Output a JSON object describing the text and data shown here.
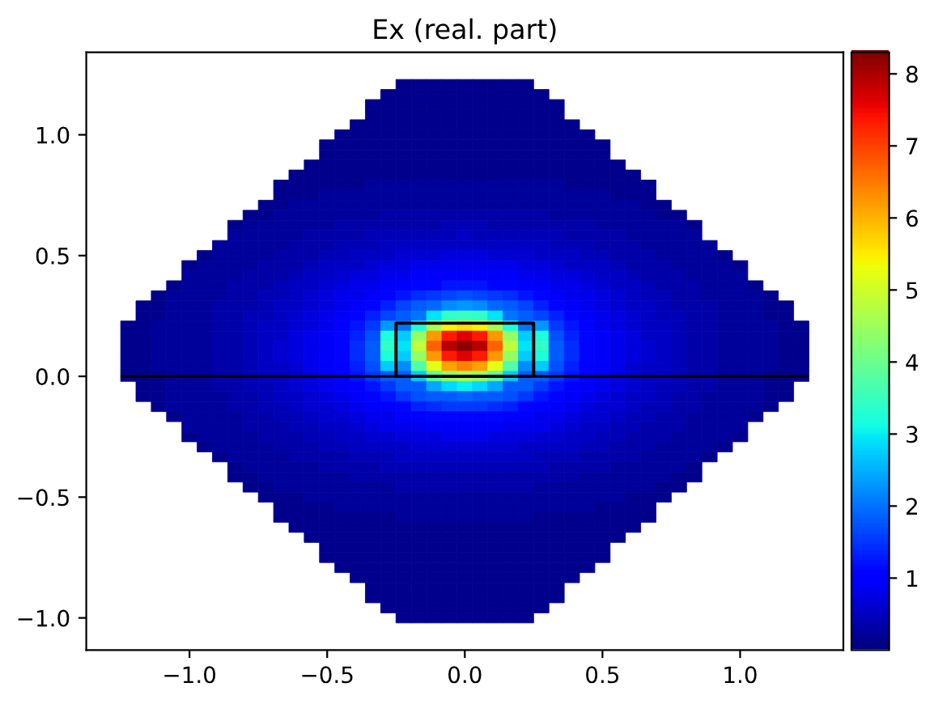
{
  "chart_data": {
    "type": "heatmap",
    "title": "Ex (real. part)",
    "clim": [
      0,
      8.3
    ],
    "cticks": [
      1,
      2,
      3,
      4,
      5,
      6,
      7,
      8
    ],
    "categories": [
      null,
      null,
      null,
      null,
      "−1.0",
      null,
      null,
      null,
      null,
      null,
      null,
      null,
      null,
      "−0.5",
      null,
      null,
      null,
      null,
      null,
      null,
      null,
      null,
      "0.0",
      null,
      null,
      null,
      null,
      null,
      null,
      null,
      null,
      "0.5",
      null,
      null,
      null,
      null,
      null,
      null,
      null,
      null,
      "1.0",
      null,
      null,
      null,
      null
    ],
    "y_categories": [
      null,
      null,
      null,
      null,
      null,
      "1.0",
      null,
      null,
      null,
      null,
      null,
      null,
      null,
      null,
      null,
      null,
      null,
      "0.5",
      null,
      null,
      null,
      null,
      null,
      null,
      null,
      null,
      null,
      null,
      null,
      "0.0",
      null,
      null,
      null,
      null,
      null,
      null,
      null,
      null,
      null,
      null,
      null,
      "−0.5",
      null,
      null,
      null,
      null,
      null,
      null,
      null,
      null,
      null,
      null,
      null,
      "−1.0"
    ],
    "ref_lines": [
      {
        "axis": "y",
        "value": "0.0",
        "color": "#000000"
      }
    ],
    "cells": [
      [
        null,
        null,
        null,
        null,
        null,
        null,
        null,
        null,
        null,
        null,
        null,
        null,
        null,
        null,
        null,
        null,
        null,
        null,
        0.1,
        0.1,
        0.1,
        0.1,
        0.1,
        0.1,
        0.1,
        0.1,
        0.1,
        null,
        null,
        null,
        null,
        null,
        null,
        null,
        null,
        null,
        null,
        null,
        null,
        null,
        null,
        null,
        null,
        null,
        null
      ],
      [
        null,
        null,
        null,
        null,
        null,
        null,
        null,
        null,
        null,
        null,
        null,
        null,
        null,
        null,
        null,
        null,
        null,
        0.1,
        0.1,
        0.1,
        0.1,
        0.1,
        0.1,
        0.1,
        0.1,
        0.1,
        0.1,
        0.1,
        null,
        null,
        null,
        null,
        null,
        null,
        null,
        null,
        null,
        null,
        null,
        null,
        null,
        null,
        null,
        null,
        null
      ],
      [
        null,
        null,
        null,
        null,
        null,
        null,
        null,
        null,
        null,
        null,
        null,
        null,
        null,
        null,
        null,
        null,
        0.1,
        0.1,
        0.1,
        0.1,
        0.1,
        0.1,
        0.1,
        0.1,
        0.1,
        0.1,
        0.1,
        0.1,
        0.1,
        null,
        null,
        null,
        null,
        null,
        null,
        null,
        null,
        null,
        null,
        null,
        null,
        null,
        null,
        null,
        null
      ],
      [
        null,
        null,
        null,
        null,
        null,
        null,
        null,
        null,
        null,
        null,
        null,
        null,
        null,
        null,
        null,
        null,
        0.1,
        0.1,
        0.1,
        0.1,
        0.1,
        0.1,
        0.1,
        0.1,
        0.1,
        0.1,
        0.1,
        0.1,
        0.1,
        null,
        null,
        null,
        null,
        null,
        null,
        null,
        null,
        null,
        null,
        null,
        null,
        null,
        null,
        null,
        null
      ],
      [
        null,
        null,
        null,
        null,
        null,
        null,
        null,
        null,
        null,
        null,
        null,
        null,
        null,
        null,
        null,
        0.1,
        0.1,
        0.1,
        0.1,
        0.1,
        0.1,
        0.1,
        0.1,
        0.1,
        0.1,
        0.1,
        0.1,
        0.1,
        0.1,
        0.1,
        null,
        null,
        null,
        null,
        null,
        null,
        null,
        null,
        null,
        null,
        null,
        null,
        null,
        null,
        null
      ],
      [
        null,
        null,
        null,
        null,
        null,
        null,
        null,
        null,
        null,
        null,
        null,
        null,
        null,
        null,
        0.1,
        0.1,
        0.1,
        0.1,
        0.1,
        0.1,
        0.1,
        0.1,
        0.1,
        0.1,
        0.1,
        0.1,
        0.1,
        0.1,
        0.1,
        0.1,
        0.1,
        null,
        null,
        null,
        null,
        null,
        null,
        null,
        null,
        null,
        null,
        null,
        null,
        null,
        null
      ],
      [
        null,
        null,
        null,
        null,
        null,
        null,
        null,
        null,
        null,
        null,
        null,
        null,
        null,
        0.1,
        0.1,
        0.1,
        0.1,
        0.1,
        0.1,
        0.1,
        0.1,
        0.1,
        0.1,
        0.1,
        0.1,
        0.1,
        0.1,
        0.1,
        0.1,
        0.1,
        0.1,
        0.1,
        null,
        null,
        null,
        null,
        null,
        null,
        null,
        null,
        null,
        null,
        null,
        null,
        null
      ],
      [
        null,
        null,
        null,
        null,
        null,
        null,
        null,
        null,
        null,
        null,
        null,
        null,
        null,
        0.1,
        0.1,
        0.1,
        0.1,
        0.1,
        0.1,
        0.1,
        0.1,
        0.1,
        0.1,
        0.1,
        0.1,
        0.1,
        0.1,
        0.1,
        0.1,
        0.1,
        0.1,
        0.1,
        null,
        null,
        null,
        null,
        null,
        null,
        null,
        null,
        null,
        null,
        null,
        null,
        null
      ],
      [
        null,
        null,
        null,
        null,
        null,
        null,
        null,
        null,
        null,
        null,
        null,
        null,
        0.1,
        0.1,
        0.1,
        0.1,
        0.1,
        0.1,
        0.1,
        0.1,
        0.1,
        0.1,
        0.1,
        0.1,
        0.1,
        0.1,
        0.1,
        0.1,
        0.1,
        0.1,
        0.1,
        0.1,
        0.1,
        null,
        null,
        null,
        null,
        null,
        null,
        null,
        null,
        null,
        null,
        null,
        null
      ],
      [
        null,
        null,
        null,
        null,
        null,
        null,
        null,
        null,
        null,
        null,
        null,
        0.1,
        0.1,
        0.1,
        0.1,
        0.1,
        0.1,
        0.1,
        0.1,
        0.1,
        0.1,
        0.1,
        0.1,
        0.1,
        0.1,
        0.1,
        0.1,
        0.1,
        0.1,
        0.1,
        0.1,
        0.1,
        0.1,
        0.1,
        null,
        null,
        null,
        null,
        null,
        null,
        null,
        null,
        null,
        null,
        null
      ],
      [
        null,
        null,
        null,
        null,
        null,
        null,
        null,
        null,
        null,
        null,
        0.1,
        0.1,
        0.1,
        0.1,
        0.1,
        0.1,
        0.2,
        0.2,
        0.2,
        0.2,
        0.2,
        0.2,
        0.2,
        0.2,
        0.2,
        0.2,
        0.2,
        0.2,
        0.2,
        0.1,
        0.1,
        0.1,
        0.1,
        0.1,
        0.1,
        null,
        null,
        null,
        null,
        null,
        null,
        null,
        null,
        null,
        null
      ],
      [
        null,
        null,
        null,
        null,
        null,
        null,
        null,
        null,
        null,
        null,
        0.1,
        0.1,
        0.1,
        0.2,
        0.2,
        0.2,
        0.2,
        0.2,
        0.2,
        0.2,
        0.2,
        0.2,
        0.2,
        0.2,
        0.2,
        0.2,
        0.2,
        0.2,
        0.2,
        0.2,
        0.2,
        0.2,
        0.1,
        0.1,
        0.1,
        null,
        null,
        null,
        null,
        null,
        null,
        null,
        null,
        null,
        null
      ],
      [
        null,
        null,
        null,
        null,
        null,
        null,
        null,
        null,
        null,
        0.1,
        0.1,
        0.2,
        0.2,
        0.2,
        0.2,
        0.2,
        0.2,
        0.2,
        0.2,
        0.2,
        0.2,
        0.2,
        0.2,
        0.2,
        0.2,
        0.2,
        0.2,
        0.2,
        0.2,
        0.2,
        0.2,
        0.2,
        0.2,
        0.2,
        0.1,
        0.1,
        null,
        null,
        null,
        null,
        null,
        null,
        null,
        null,
        null
      ],
      [
        null,
        null,
        null,
        null,
        null,
        null,
        null,
        null,
        0.1,
        0.1,
        0.2,
        0.2,
        0.2,
        0.2,
        0.2,
        0.2,
        0.2,
        0.3,
        0.3,
        0.3,
        0.3,
        0.3,
        0.3,
        0.3,
        0.3,
        0.3,
        0.3,
        0.3,
        0.2,
        0.2,
        0.2,
        0.2,
        0.2,
        0.2,
        0.2,
        0.1,
        0.1,
        null,
        null,
        null,
        null,
        null,
        null,
        null,
        null
      ],
      [
        null,
        null,
        null,
        null,
        null,
        null,
        null,
        0.1,
        0.2,
        0.2,
        0.2,
        0.2,
        0.2,
        0.2,
        0.3,
        0.3,
        0.3,
        0.3,
        0.3,
        0.3,
        0.3,
        0.4,
        0.4,
        0.4,
        0.3,
        0.3,
        0.3,
        0.3,
        0.3,
        0.3,
        0.3,
        0.2,
        0.2,
        0.2,
        0.2,
        0.2,
        0.2,
        0.1,
        null,
        null,
        null,
        null,
        null,
        null,
        null
      ],
      [
        null,
        null,
        null,
        null,
        null,
        null,
        null,
        0.2,
        0.2,
        0.2,
        0.2,
        0.2,
        0.3,
        0.3,
        0.3,
        0.3,
        0.4,
        0.4,
        0.4,
        0.4,
        0.4,
        0.4,
        0.5,
        0.4,
        0.4,
        0.4,
        0.4,
        0.4,
        0.4,
        0.3,
        0.3,
        0.3,
        0.3,
        0.2,
        0.2,
        0.2,
        0.2,
        0.2,
        null,
        null,
        null,
        null,
        null,
        null,
        null
      ],
      [
        null,
        null,
        null,
        null,
        null,
        null,
        0.2,
        0.2,
        0.2,
        0.2,
        0.2,
        0.3,
        0.3,
        0.3,
        0.4,
        0.4,
        0.4,
        0.5,
        0.5,
        0.5,
        0.5,
        0.5,
        0.5,
        0.5,
        0.5,
        0.5,
        0.5,
        0.5,
        0.4,
        0.4,
        0.4,
        0.3,
        0.3,
        0.3,
        0.2,
        0.2,
        0.2,
        0.2,
        0.2,
        null,
        null,
        null,
        null,
        null,
        null
      ],
      [
        null,
        null,
        null,
        null,
        null,
        0.1,
        0.2,
        0.2,
        0.2,
        0.2,
        0.3,
        0.3,
        0.3,
        0.4,
        0.4,
        0.5,
        0.5,
        0.5,
        0.6,
        0.6,
        0.6,
        0.7,
        0.7,
        0.7,
        0.6,
        0.6,
        0.6,
        0.5,
        0.5,
        0.5,
        0.4,
        0.4,
        0.3,
        0.3,
        0.3,
        0.2,
        0.2,
        0.2,
        0.2,
        0.1,
        null,
        null,
        null,
        null,
        null
      ],
      [
        null,
        null,
        null,
        null,
        0.1,
        0.2,
        0.2,
        0.2,
        0.2,
        0.3,
        0.3,
        0.3,
        0.4,
        0.5,
        0.5,
        0.5,
        0.6,
        0.7,
        0.7,
        0.8,
        0.8,
        0.8,
        0.8,
        0.8,
        0.8,
        0.8,
        0.7,
        0.7,
        0.6,
        0.5,
        0.5,
        0.5,
        0.4,
        0.3,
        0.3,
        0.3,
        0.2,
        0.2,
        0.2,
        0.2,
        0.1,
        null,
        null,
        null,
        null
      ],
      [
        null,
        null,
        null,
        null,
        0.2,
        0.2,
        0.2,
        0.2,
        0.3,
        0.3,
        0.3,
        0.4,
        0.5,
        0.5,
        0.6,
        0.7,
        0.7,
        0.8,
        0.8,
        0.9,
        0.9,
        0.9,
        0.9,
        0.9,
        0.9,
        0.9,
        0.8,
        0.8,
        0.7,
        0.7,
        0.6,
        0.5,
        0.5,
        0.4,
        0.3,
        0.3,
        0.3,
        0.2,
        0.2,
        0.2,
        0.2,
        null,
        null,
        null,
        null
      ],
      [
        null,
        null,
        null,
        0.1,
        0.2,
        0.2,
        0.2,
        0.3,
        0.3,
        0.3,
        0.4,
        0.5,
        0.5,
        0.6,
        0.7,
        0.8,
        0.8,
        0.9,
        1.0,
        1.1,
        1.1,
        1.2,
        1.2,
        1.2,
        1.1,
        1.1,
        1.0,
        0.9,
        0.8,
        0.8,
        0.7,
        0.6,
        0.5,
        0.5,
        0.4,
        0.3,
        0.3,
        0.3,
        0.2,
        0.2,
        0.2,
        0.1,
        null,
        null,
        null
      ],
      [
        null,
        null,
        0.1,
        0.2,
        0.2,
        0.2,
        0.2,
        0.3,
        0.3,
        0.4,
        0.4,
        0.5,
        0.6,
        0.7,
        0.8,
        0.8,
        0.9,
        1.1,
        1.2,
        1.4,
        1.5,
        1.6,
        1.7,
        1.6,
        1.5,
        1.4,
        1.2,
        1.1,
        0.9,
        0.8,
        0.8,
        0.7,
        0.6,
        0.5,
        0.4,
        0.4,
        0.3,
        0.3,
        0.2,
        0.2,
        0.2,
        0.2,
        0.1,
        null,
        null
      ],
      [
        null,
        0.1,
        0.1,
        0.2,
        0.2,
        0.2,
        0.3,
        0.3,
        0.3,
        0.4,
        0.5,
        0.5,
        0.6,
        0.7,
        0.8,
        0.9,
        1.1,
        1.3,
        1.6,
        1.8,
        1.9,
        2.2,
        2.3,
        2.2,
        1.9,
        1.8,
        1.6,
        1.3,
        1.1,
        0.9,
        0.8,
        0.7,
        0.6,
        0.5,
        0.5,
        0.4,
        0.3,
        0.3,
        0.3,
        0.2,
        0.2,
        0.2,
        0.1,
        0.1,
        null
      ],
      [
        null,
        0.1,
        0.1,
        0.2,
        0.2,
        0.2,
        0.3,
        0.3,
        0.4,
        0.4,
        0.5,
        0.6,
        0.7,
        0.8,
        0.9,
        1.1,
        1.3,
        1.6,
        1.8,
        2.0,
        2.9,
        3.4,
        3.5,
        3.4,
        2.9,
        2.0,
        1.8,
        1.6,
        1.3,
        1.1,
        0.9,
        0.8,
        0.7,
        0.6,
        0.5,
        0.4,
        0.4,
        0.3,
        0.3,
        0.2,
        0.2,
        0.2,
        0.1,
        0.1,
        null
      ],
      [
        0.1,
        0.1,
        0.2,
        0.2,
        0.2,
        0.2,
        0.3,
        0.3,
        0.4,
        0.5,
        0.5,
        0.6,
        0.7,
        0.8,
        1.0,
        1.2,
        1.5,
        2.3,
        2.0,
        3.2,
        4.6,
        5.4,
        5.6,
        5.4,
        4.6,
        3.2,
        2.0,
        2.3,
        1.5,
        1.2,
        1.0,
        0.8,
        0.7,
        0.6,
        0.5,
        0.5,
        0.4,
        0.3,
        0.3,
        0.2,
        0.2,
        0.2,
        0.2,
        0.1,
        0.1
      ],
      [
        0.1,
        0.1,
        0.2,
        0.2,
        0.2,
        0.2,
        0.3,
        0.3,
        0.4,
        0.5,
        0.5,
        0.7,
        0.8,
        0.9,
        1.1,
        1.3,
        1.7,
        3.2,
        2.7,
        4.4,
        6.2,
        7.3,
        7.6,
        7.3,
        6.2,
        4.4,
        2.7,
        3.2,
        1.7,
        1.3,
        1.1,
        0.9,
        0.8,
        0.7,
        0.5,
        0.5,
        0.4,
        0.3,
        0.3,
        0.2,
        0.2,
        0.2,
        0.2,
        0.1,
        0.1
      ],
      [
        0.1,
        0.1,
        0.2,
        0.2,
        0.2,
        0.2,
        0.3,
        0.3,
        0.4,
        0.5,
        0.6,
        0.7,
        0.8,
        0.9,
        1.1,
        1.4,
        1.8,
        3.4,
        2.9,
        4.8,
        6.7,
        7.9,
        8.2,
        7.9,
        6.7,
        4.8,
        2.9,
        3.4,
        1.8,
        1.4,
        1.1,
        0.9,
        0.8,
        0.7,
        0.6,
        0.5,
        0.4,
        0.3,
        0.3,
        0.2,
        0.2,
        0.2,
        0.2,
        0.1,
        0.1
      ],
      [
        0.1,
        0.1,
        0.2,
        0.2,
        0.2,
        0.2,
        0.3,
        0.3,
        0.4,
        0.5,
        0.6,
        0.7,
        0.8,
        0.9,
        1.1,
        1.4,
        1.8,
        3.2,
        2.7,
        4.4,
        6.2,
        7.3,
        7.6,
        7.3,
        6.2,
        4.4,
        2.7,
        3.2,
        1.8,
        1.4,
        1.1,
        0.9,
        0.8,
        0.7,
        0.6,
        0.5,
        0.4,
        0.3,
        0.3,
        0.2,
        0.2,
        0.2,
        0.2,
        0.1,
        0.1
      ],
      [
        0.1,
        0.1,
        0.2,
        0.2,
        0.2,
        0.2,
        0.3,
        0.3,
        0.4,
        0.5,
        0.5,
        0.6,
        0.8,
        0.9,
        1.0,
        1.3,
        1.7,
        2.7,
        2.2,
        3.7,
        5.2,
        6.1,
        6.4,
        6.1,
        5.2,
        3.7,
        2.2,
        2.7,
        1.7,
        1.3,
        1.0,
        0.9,
        0.8,
        0.6,
        0.5,
        0.5,
        0.4,
        0.3,
        0.3,
        0.2,
        0.2,
        0.2,
        0.2,
        0.1,
        0.1
      ],
      [
        0.1,
        0.1,
        0.1,
        0.2,
        0.2,
        0.2,
        0.3,
        0.3,
        0.4,
        0.5,
        0.5,
        0.6,
        0.7,
        0.8,
        1.0,
        1.2,
        1.5,
        1.8,
        1.8,
        2.7,
        3.8,
        4.4,
        4.6,
        4.4,
        3.8,
        2.7,
        1.8,
        1.8,
        1.5,
        1.2,
        1.0,
        0.8,
        0.7,
        0.6,
        0.5,
        0.5,
        0.4,
        0.3,
        0.3,
        0.2,
        0.2,
        0.2,
        0.1,
        0.1,
        0.1
      ],
      [
        null,
        0.1,
        0.1,
        0.2,
        0.2,
        0.2,
        0.3,
        0.3,
        0.4,
        0.4,
        0.5,
        0.6,
        0.7,
        0.8,
        0.9,
        1.0,
        1.2,
        1.5,
        1.8,
        1.8,
        2.4,
        2.8,
        3.0,
        2.8,
        2.4,
        1.8,
        1.8,
        1.5,
        1.2,
        1.0,
        0.9,
        0.8,
        0.7,
        0.6,
        0.5,
        0.4,
        0.4,
        0.3,
        0.3,
        0.2,
        0.2,
        0.2,
        0.1,
        0.1,
        null
      ],
      [
        null,
        0.1,
        0.1,
        0.2,
        0.2,
        0.2,
        0.2,
        0.3,
        0.3,
        0.4,
        0.5,
        0.5,
        0.6,
        0.7,
        0.8,
        0.9,
        1.1,
        1.2,
        1.5,
        1.7,
        1.8,
        1.8,
        1.9,
        1.8,
        1.8,
        1.7,
        1.5,
        1.2,
        1.1,
        0.9,
        0.8,
        0.7,
        0.6,
        0.5,
        0.5,
        0.4,
        0.3,
        0.3,
        0.2,
        0.2,
        0.2,
        0.2,
        0.1,
        0.1,
        null
      ],
      [
        null,
        null,
        0.1,
        0.2,
        0.2,
        0.2,
        0.2,
        0.3,
        0.3,
        0.4,
        0.4,
        0.5,
        0.6,
        0.6,
        0.7,
        0.8,
        0.9,
        1.0,
        1.1,
        1.3,
        1.4,
        1.5,
        1.5,
        1.5,
        1.4,
        1.3,
        1.1,
        1.0,
        0.9,
        0.8,
        0.7,
        0.6,
        0.6,
        0.5,
        0.4,
        0.4,
        0.3,
        0.3,
        0.2,
        0.2,
        0.2,
        0.2,
        0.1,
        null,
        null
      ],
      [
        null,
        null,
        null,
        0.1,
        0.2,
        0.2,
        0.2,
        0.2,
        0.3,
        0.3,
        0.4,
        0.4,
        0.5,
        0.6,
        0.6,
        0.7,
        0.8,
        0.8,
        0.9,
        1.0,
        1.1,
        1.1,
        1.1,
        1.1,
        1.1,
        1.0,
        0.9,
        0.8,
        0.8,
        0.7,
        0.6,
        0.6,
        0.5,
        0.4,
        0.4,
        0.3,
        0.3,
        0.2,
        0.2,
        0.2,
        0.2,
        0.1,
        null,
        null,
        null
      ],
      [
        null,
        null,
        null,
        null,
        0.2,
        0.2,
        0.2,
        0.2,
        0.3,
        0.3,
        0.3,
        0.4,
        0.4,
        0.5,
        0.5,
        0.6,
        0.7,
        0.8,
        0.8,
        0.8,
        0.9,
        0.9,
        0.9,
        0.9,
        0.9,
        0.8,
        0.8,
        0.8,
        0.7,
        0.6,
        0.5,
        0.5,
        0.4,
        0.4,
        0.3,
        0.3,
        0.3,
        0.2,
        0.2,
        0.2,
        0.2,
        null,
        null,
        null,
        null
      ],
      [
        null,
        null,
        null,
        null,
        0.1,
        0.2,
        0.2,
        0.2,
        0.2,
        0.3,
        0.3,
        0.3,
        0.4,
        0.4,
        0.5,
        0.5,
        0.6,
        0.6,
        0.7,
        0.7,
        0.7,
        0.8,
        0.8,
        0.8,
        0.7,
        0.7,
        0.7,
        0.6,
        0.6,
        0.5,
        0.5,
        0.4,
        0.4,
        0.3,
        0.3,
        0.3,
        0.2,
        0.2,
        0.2,
        0.2,
        0.1,
        null,
        null,
        null,
        null
      ],
      [
        null,
        null,
        null,
        null,
        null,
        0.1,
        0.2,
        0.2,
        0.2,
        0.2,
        0.3,
        0.3,
        0.3,
        0.4,
        0.4,
        0.5,
        0.5,
        0.5,
        0.5,
        0.6,
        0.6,
        0.6,
        0.6,
        0.6,
        0.6,
        0.6,
        0.5,
        0.5,
        0.5,
        0.5,
        0.4,
        0.4,
        0.3,
        0.3,
        0.3,
        0.2,
        0.2,
        0.2,
        0.2,
        0.1,
        null,
        null,
        null,
        null,
        null
      ],
      [
        null,
        null,
        null,
        null,
        null,
        null,
        0.1,
        0.2,
        0.2,
        0.2,
        0.2,
        0.3,
        0.3,
        0.3,
        0.3,
        0.4,
        0.4,
        0.4,
        0.5,
        0.5,
        0.5,
        0.5,
        0.5,
        0.5,
        0.5,
        0.5,
        0.5,
        0.4,
        0.4,
        0.4,
        0.3,
        0.3,
        0.3,
        0.3,
        0.2,
        0.2,
        0.2,
        0.2,
        0.1,
        null,
        null,
        null,
        null,
        null,
        null
      ],
      [
        null,
        null,
        null,
        null,
        null,
        null,
        null,
        0.1,
        0.2,
        0.2,
        0.2,
        0.2,
        0.2,
        0.3,
        0.3,
        0.3,
        0.3,
        0.4,
        0.4,
        0.4,
        0.4,
        0.4,
        0.4,
        0.4,
        0.4,
        0.4,
        0.4,
        0.4,
        0.3,
        0.3,
        0.3,
        0.3,
        0.2,
        0.2,
        0.2,
        0.2,
        0.2,
        0.1,
        null,
        null,
        null,
        null,
        null,
        null,
        null
      ],
      [
        null,
        null,
        null,
        null,
        null,
        null,
        null,
        0.1,
        0.1,
        0.2,
        0.2,
        0.2,
        0.2,
        0.2,
        0.2,
        0.3,
        0.3,
        0.3,
        0.3,
        0.3,
        0.3,
        0.3,
        0.3,
        0.3,
        0.3,
        0.3,
        0.3,
        0.3,
        0.3,
        0.3,
        0.2,
        0.2,
        0.2,
        0.2,
        0.2,
        0.2,
        0.1,
        0.1,
        null,
        null,
        null,
        null,
        null,
        null,
        null
      ],
      [
        null,
        null,
        null,
        null,
        null,
        null,
        null,
        null,
        0.1,
        0.1,
        0.2,
        0.2,
        0.2,
        0.2,
        0.2,
        0.2,
        0.2,
        0.2,
        0.3,
        0.3,
        0.3,
        0.3,
        0.3,
        0.3,
        0.3,
        0.3,
        0.3,
        0.2,
        0.2,
        0.2,
        0.2,
        0.2,
        0.2,
        0.2,
        0.2,
        0.1,
        0.1,
        null,
        null,
        null,
        null,
        null,
        null,
        null,
        null
      ],
      [
        null,
        null,
        null,
        null,
        null,
        null,
        null,
        null,
        null,
        0.1,
        0.1,
        0.1,
        0.2,
        0.2,
        0.2,
        0.2,
        0.2,
        0.2,
        0.2,
        0.2,
        0.2,
        0.2,
        0.2,
        0.2,
        0.2,
        0.2,
        0.2,
        0.2,
        0.2,
        0.2,
        0.2,
        0.2,
        0.2,
        0.1,
        0.1,
        0.1,
        null,
        null,
        null,
        null,
        null,
        null,
        null,
        null,
        null
      ],
      [
        null,
        null,
        null,
        null,
        null,
        null,
        null,
        null,
        null,
        null,
        0.1,
        0.1,
        0.1,
        0.1,
        0.2,
        0.2,
        0.2,
        0.2,
        0.2,
        0.2,
        0.2,
        0.2,
        0.2,
        0.2,
        0.2,
        0.2,
        0.2,
        0.2,
        0.2,
        0.2,
        0.2,
        0.1,
        0.1,
        0.1,
        0.1,
        null,
        null,
        null,
        null,
        null,
        null,
        null,
        null,
        null,
        null
      ],
      [
        null,
        null,
        null,
        null,
        null,
        null,
        null,
        null,
        null,
        null,
        0.1,
        0.1,
        0.1,
        0.1,
        0.1,
        0.1,
        0.1,
        0.1,
        0.2,
        0.2,
        0.2,
        0.2,
        0.2,
        0.2,
        0.2,
        0.2,
        0.2,
        0.1,
        0.1,
        0.1,
        0.1,
        0.1,
        0.1,
        0.1,
        0.1,
        null,
        null,
        null,
        null,
        null,
        null,
        null,
        null,
        null,
        null
      ],
      [
        null,
        null,
        null,
        null,
        null,
        null,
        null,
        null,
        null,
        null,
        null,
        0.1,
        0.1,
        0.1,
        0.1,
        0.1,
        0.1,
        0.1,
        0.1,
        0.1,
        0.1,
        0.1,
        0.1,
        0.1,
        0.1,
        0.1,
        0.1,
        0.1,
        0.1,
        0.1,
        0.1,
        0.1,
        0.1,
        0.1,
        null,
        null,
        null,
        null,
        null,
        null,
        null,
        null,
        null,
        null,
        null
      ],
      [
        null,
        null,
        null,
        null,
        null,
        null,
        null,
        null,
        null,
        null,
        null,
        null,
        0.1,
        0.1,
        0.1,
        0.1,
        0.1,
        0.1,
        0.1,
        0.1,
        0.1,
        0.1,
        0.1,
        0.1,
        0.1,
        0.1,
        0.1,
        0.1,
        0.1,
        0.1,
        0.1,
        0.1,
        0.1,
        null,
        null,
        null,
        null,
        null,
        null,
        null,
        null,
        null,
        null,
        null,
        null
      ],
      [
        null,
        null,
        null,
        null,
        null,
        null,
        null,
        null,
        null,
        null,
        null,
        null,
        null,
        0.1,
        0.1,
        0.1,
        0.1,
        0.1,
        0.1,
        0.1,
        0.1,
        0.1,
        0.1,
        0.1,
        0.1,
        0.1,
        0.1,
        0.1,
        0.1,
        0.1,
        0.1,
        0.1,
        null,
        null,
        null,
        null,
        null,
        null,
        null,
        null,
        null,
        null,
        null,
        null,
        null
      ],
      [
        null,
        null,
        null,
        null,
        null,
        null,
        null,
        null,
        null,
        null,
        null,
        null,
        null,
        0.1,
        0.1,
        0.1,
        0.1,
        0.1,
        0.1,
        0.1,
        0.1,
        0.1,
        0.1,
        0.1,
        0.1,
        0.1,
        0.1,
        0.1,
        0.1,
        0.1,
        0.1,
        0.1,
        null,
        null,
        null,
        null,
        null,
        null,
        null,
        null,
        null,
        null,
        null,
        null,
        null
      ],
      [
        null,
        null,
        null,
        null,
        null,
        null,
        null,
        null,
        null,
        null,
        null,
        null,
        null,
        null,
        0.1,
        0.1,
        0.1,
        0.1,
        0.1,
        0.1,
        0.1,
        0.1,
        0.1,
        0.1,
        0.1,
        0.1,
        0.1,
        0.1,
        0.1,
        0.1,
        0.1,
        null,
        null,
        null,
        null,
        null,
        null,
        null,
        null,
        null,
        null,
        null,
        null,
        null,
        null
      ],
      [
        null,
        null,
        null,
        null,
        null,
        null,
        null,
        null,
        null,
        null,
        null,
        null,
        null,
        null,
        null,
        0.1,
        0.1,
        0.1,
        0.1,
        0.1,
        0.1,
        0.1,
        0.1,
        0.1,
        0.1,
        0.1,
        0.1,
        0.1,
        0.1,
        0.1,
        null,
        null,
        null,
        null,
        null,
        null,
        null,
        null,
        null,
        null,
        null,
        null,
        null,
        null,
        null
      ],
      [
        null,
        null,
        null,
        null,
        null,
        null,
        null,
        null,
        null,
        null,
        null,
        null,
        null,
        null,
        null,
        null,
        0.1,
        0.1,
        0.1,
        0.1,
        0.1,
        0.1,
        0.1,
        0.1,
        0.1,
        0.1,
        0.1,
        0.1,
        0.1,
        null,
        null,
        null,
        null,
        null,
        null,
        null,
        null,
        null,
        null,
        null,
        null,
        null,
        null,
        null,
        null
      ],
      [
        null,
        null,
        null,
        null,
        null,
        null,
        null,
        null,
        null,
        null,
        null,
        null,
        null,
        null,
        null,
        null,
        0.1,
        0.1,
        0.1,
        0.1,
        0.1,
        0.1,
        0.1,
        0.1,
        0.1,
        0.1,
        0.1,
        0.1,
        0.1,
        null,
        null,
        null,
        null,
        null,
        null,
        null,
        null,
        null,
        null,
        null,
        null,
        null,
        null,
        null,
        null
      ],
      [
        null,
        null,
        null,
        null,
        null,
        null,
        null,
        null,
        null,
        null,
        null,
        null,
        null,
        null,
        null,
        null,
        null,
        0.1,
        0.1,
        0.1,
        0.1,
        0.1,
        0.1,
        0.1,
        0.1,
        0.1,
        0.1,
        0.1,
        null,
        null,
        null,
        null,
        null,
        null,
        null,
        null,
        null,
        null,
        null,
        null,
        null,
        null,
        null,
        null,
        null
      ],
      [
        null,
        null,
        null,
        null,
        null,
        null,
        null,
        null,
        null,
        null,
        null,
        null,
        null,
        null,
        null,
        null,
        null,
        null,
        0.1,
        0.1,
        0.1,
        0.1,
        0.1,
        0.1,
        0.1,
        0.1,
        0.1,
        null,
        null,
        null,
        null,
        null,
        null,
        null,
        null,
        null,
        null,
        null,
        null,
        null,
        null,
        null,
        null,
        null,
        null
      ]
    ]
  }
}
